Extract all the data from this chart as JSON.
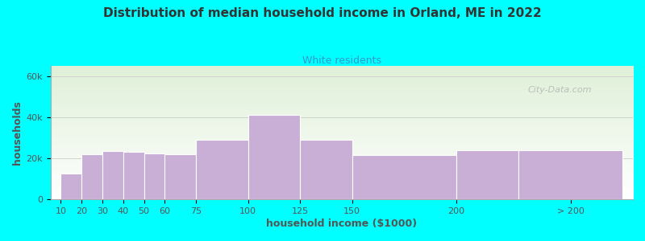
{
  "title": "Distribution of median household income in Orland, ME in 2022",
  "subtitle": "White residents",
  "xlabel": "household income ($1000)",
  "ylabel": "households",
  "background_color": "#00FFFF",
  "plot_bg_gradient_top": "#dff0d8",
  "plot_bg_gradient_bottom": "#ffffff",
  "bar_color": "#c9aed6",
  "bar_edge_color": "#ffffff",
  "grid_color": "#cccccc",
  "title_color": "#333333",
  "subtitle_color": "#3399cc",
  "axis_label_color": "#555555",
  "tick_label_color": "#555555",
  "bar_left_edges": [
    10,
    20,
    30,
    40,
    50,
    60,
    75,
    100,
    125,
    150,
    200,
    230
  ],
  "bar_widths": [
    10,
    10,
    10,
    10,
    10,
    15,
    25,
    25,
    25,
    50,
    30,
    50
  ],
  "values": [
    12500,
    22000,
    23500,
    23000,
    22500,
    22000,
    29000,
    41000,
    29000,
    21500,
    24000,
    24000
  ],
  "xlim": [
    5,
    285
  ],
  "ylim": [
    0,
    65000
  ],
  "yticks": [
    0,
    20000,
    40000,
    60000
  ],
  "ytick_labels": [
    "0",
    "20k",
    "40k",
    "60k"
  ],
  "xtick_positions": [
    10,
    20,
    30,
    40,
    50,
    60,
    75,
    100,
    125,
    150,
    200,
    255
  ],
  "xtick_labels": [
    "10",
    "20",
    "30",
    "40",
    "50",
    "60",
    "75",
    "100",
    "125",
    "150",
    "200",
    "> 200"
  ],
  "watermark": "City-Data.com"
}
